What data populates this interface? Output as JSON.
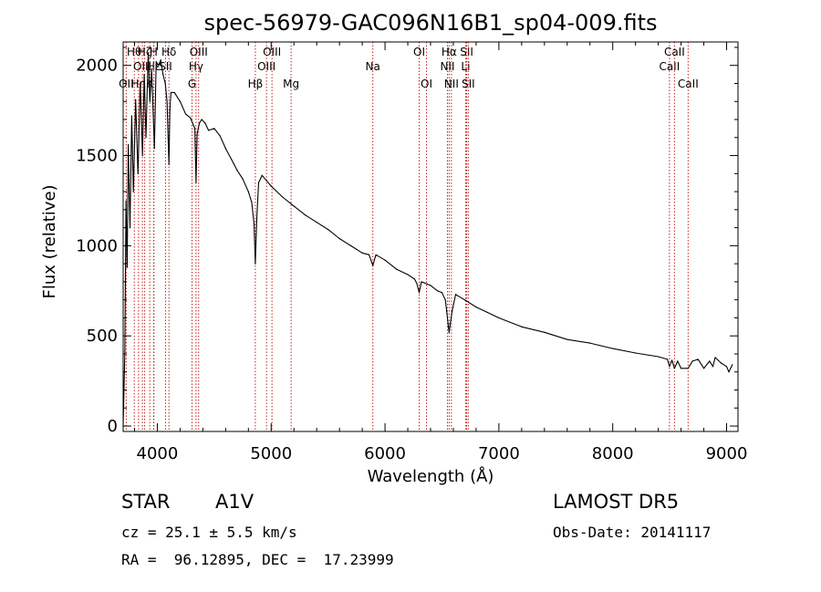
{
  "chart_data": {
    "type": "line",
    "title": "spec-56979-GAC096N16B1_sp04-009.fits",
    "xlabel": "Wavelength (Å)",
    "ylabel": "Flux (relative)",
    "xlim": [
      3700,
      9100
    ],
    "ylim": [
      -30,
      2130
    ],
    "xticks": [
      4000,
      5000,
      6000,
      7000,
      8000,
      9000
    ],
    "yticks": [
      0,
      500,
      1000,
      1500,
      2000
    ],
    "xtick_labels": [
      "4000",
      "5000",
      "6000",
      "7000",
      "8000",
      "9000"
    ],
    "ytick_labels": [
      "0",
      "500",
      "1000",
      "1500",
      "2000"
    ],
    "line_markers": [
      {
        "label": "OII",
        "x": 3727,
        "row": 3
      },
      {
        "label": "Hθ",
        "x": 3798,
        "row": 1
      },
      {
        "label": "Hη",
        "x": 3835,
        "row": 3
      },
      {
        "label": "OIII",
        "x": 3869,
        "row": 2
      },
      {
        "label": "Hζ",
        "x": 3889,
        "row": 1
      },
      {
        "label": "Hε",
        "x": 3970,
        "row": 2
      },
      {
        "label": "K",
        "x": 3934,
        "row": 3
      },
      {
        "label": "H",
        "x": 3968,
        "row": 1
      },
      {
        "label": "SII",
        "x": 4072,
        "row": 2
      },
      {
        "label": "Hδ",
        "x": 4102,
        "row": 1
      },
      {
        "label": "G",
        "x": 4305,
        "row": 3
      },
      {
        "label": "Hγ",
        "x": 4340,
        "row": 2
      },
      {
        "label": "OIII",
        "x": 4363,
        "row": 1
      },
      {
        "label": "Hβ",
        "x": 4861,
        "row": 3
      },
      {
        "label": "OIII",
        "x": 4959,
        "row": 2
      },
      {
        "label": "OIII",
        "x": 5007,
        "row": 1
      },
      {
        "label": "Mg",
        "x": 5175,
        "row": 3
      },
      {
        "label": "Na",
        "x": 5893,
        "row": 2
      },
      {
        "label": "OI",
        "x": 6300,
        "row": 1
      },
      {
        "label": "OI",
        "x": 6364,
        "row": 3
      },
      {
        "label": "NII",
        "x": 6548,
        "row": 2
      },
      {
        "label": "Hα",
        "x": 6563,
        "row": 1
      },
      {
        "label": "NII",
        "x": 6583,
        "row": 3
      },
      {
        "label": "Li",
        "x": 6708,
        "row": 2
      },
      {
        "label": "SII",
        "x": 6717,
        "row": 1
      },
      {
        "label": "SII",
        "x": 6731,
        "row": 3
      },
      {
        "label": "CaII",
        "x": 8498,
        "row": 2
      },
      {
        "label": "CaII",
        "x": 8542,
        "row": 1
      },
      {
        "label": "CaII",
        "x": 8662,
        "row": 3
      }
    ],
    "series": [
      {
        "x": [
          3700,
          3715,
          3725,
          3735,
          3745,
          3760,
          3775,
          3790,
          3810,
          3830,
          3850,
          3870,
          3885,
          3900,
          3920,
          3935,
          3950,
          3975,
          3990,
          4010,
          4030,
          4050,
          4070,
          4085,
          4095,
          4102,
          4110,
          4120,
          4150,
          4200,
          4250,
          4290,
          4330,
          4340,
          4350,
          4370,
          4390,
          4420,
          4450,
          4500,
          4550,
          4600,
          4650,
          4700,
          4750,
          4800,
          4830,
          4850,
          4861,
          4872,
          4890,
          4920,
          4960,
          5000,
          5100,
          5200,
          5300,
          5400,
          5500,
          5600,
          5700,
          5800,
          5860,
          5893,
          5920,
          6000,
          6100,
          6200,
          6260,
          6280,
          6300,
          6320,
          6400,
          6460,
          6500,
          6530,
          6563,
          6590,
          6620,
          6700,
          6800,
          6900,
          7000,
          7200,
          7400,
          7600,
          7800,
          8000,
          8200,
          8400,
          8480,
          8498,
          8520,
          8542,
          8570,
          8600,
          8662,
          8700,
          8750,
          8800,
          8850,
          8880,
          8900,
          8950,
          9000,
          9020,
          9050
        ],
        "values": [
          0,
          420,
          1250,
          880,
          1560,
          1100,
          1720,
          1300,
          1810,
          1400,
          1900,
          1500,
          1950,
          1600,
          2070,
          1800,
          1980,
          1540,
          2020,
          2000,
          2030,
          1950,
          1900,
          1800,
          1600,
          1450,
          1750,
          1850,
          1850,
          1800,
          1730,
          1710,
          1650,
          1350,
          1620,
          1680,
          1700,
          1680,
          1640,
          1650,
          1610,
          1540,
          1480,
          1420,
          1370,
          1300,
          1240,
          1120,
          900,
          1130,
          1350,
          1390,
          1360,
          1330,
          1270,
          1220,
          1170,
          1130,
          1090,
          1040,
          1000,
          960,
          950,
          890,
          950,
          920,
          870,
          840,
          815,
          790,
          740,
          800,
          780,
          750,
          740,
          700,
          520,
          640,
          730,
          700,
          660,
          630,
          600,
          550,
          520,
          480,
          460,
          430,
          405,
          385,
          370,
          330,
          365,
          320,
          360,
          320,
          320,
          360,
          370,
          320,
          360,
          330,
          380,
          350,
          330,
          300,
          340
        ]
      }
    ]
  },
  "info": {
    "object_type": "STAR",
    "subclass": "A1V",
    "survey": "LAMOST DR5",
    "cz": "cz = 25.1 ± 5.5 km/s",
    "obs_date": "Obs-Date: 20141117",
    "coords": "RA =  96.12895, DEC =  17.23999"
  }
}
